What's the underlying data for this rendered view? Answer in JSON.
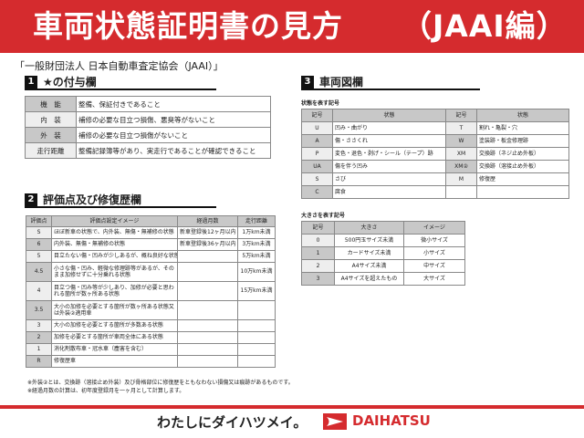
{
  "header": {
    "title": "車両状態証明書の見方",
    "title_suffix": "（JAAI編）"
  },
  "subtitle": "「一般財団法人 日本自動車査定協会（JAAI）」",
  "section1": {
    "num": "1",
    "title": "★の付与欄",
    "rows": [
      {
        "k": "機　能",
        "v": "整備、保証付きであること"
      },
      {
        "k": "内　装",
        "v": "補修の必要な目立つ損傷、悪臭等がないこと"
      },
      {
        "k": "外　装",
        "v": "補修の必要な目立つ損傷がないこと"
      },
      {
        "k": "走行距離",
        "v": "整備記録簿等があり、実走行であることが確認できること"
      }
    ]
  },
  "section2": {
    "num": "2",
    "title": "評価点及び修復歴欄",
    "headers": [
      "評価点",
      "評価点設定イメージ",
      "経過月数",
      "走行距離"
    ],
    "rows": [
      [
        "S",
        "ほぼ新車の状態で、内外装、無傷・無補修の状態",
        "新車登録後12ヶ月以内",
        "1万km未満"
      ],
      [
        "6",
        "内外装、無傷・無補修の状態",
        "新車登録後36ヶ月以内",
        "3万km未満"
      ],
      [
        "5",
        "目立たない傷・凹みが少しあるが、概ね良好な状態",
        "",
        "5万km未満"
      ],
      [
        "4.5",
        "小さな傷・凹み、軽微な修理跡等があるが、そのまま加修せずに十分乗れる状態",
        "",
        "10万km未満"
      ],
      [
        "4",
        "目立つ傷・凹み等が少しあり、加修が必要と思われる箇所が数ヶ所ある状態",
        "",
        "15万km未満"
      ],
      [
        "3.5",
        "大小の加修を必要とする箇所が数ヶ所ある状態又は外装②適用車",
        "",
        ""
      ],
      [
        "3",
        "大小の加修を必要とする箇所が多数ある状態",
        "",
        ""
      ],
      [
        "2",
        "加修を必要とする箇所が車両全体にある状態",
        "",
        ""
      ],
      [
        "1",
        "消化剤散布車・冠水車（塵害を含む）",
        "",
        ""
      ],
      [
        "R",
        "修復歴車",
        "",
        ""
      ]
    ]
  },
  "section3": {
    "num": "3",
    "title": "車両図欄",
    "state_label": "状態を表す記号",
    "state_headers": [
      "記号",
      "状態",
      "記号",
      "状態"
    ],
    "state_rows": [
      [
        "U",
        "凹み・曲がり",
        "T",
        "割れ・亀裂・穴"
      ],
      [
        "A",
        "傷・ささくれ",
        "W",
        "塗装跡・板金修理跡"
      ],
      [
        "P",
        "変色・退色・剥げ・シール（テープ）跡",
        "XM",
        "交換跡（ネジ止め外板）"
      ],
      [
        "UA",
        "傷を伴う凹み",
        "XM②",
        "交換跡（溶接止め外板）"
      ],
      [
        "S",
        "さび",
        "M",
        "修復歴"
      ],
      [
        "C",
        "腐食",
        "",
        ""
      ]
    ],
    "size_label": "大きさを表す記号",
    "size_headers": [
      "記号",
      "大きさ",
      "イメージ"
    ],
    "size_rows": [
      [
        "0",
        "500円玉サイズ未満",
        "微小サイズ"
      ],
      [
        "1",
        "カードサイズ未満",
        "小サイズ"
      ],
      [
        "2",
        "A4サイズ未満",
        "中サイズ"
      ],
      [
        "3",
        "A4サイズを超えたもの",
        "大サイズ"
      ]
    ]
  },
  "notes": [
    "※外装②とは、交換跡（溶接止め外装）及び骨格部位に修復歴をともなわない損傷又は痕跡があるものです。",
    "※経過月数の計算は、初年度登録月を一ヶ月として計算します。"
  ],
  "footer": {
    "slogan": "わたしにダイハツメイ。",
    "brand": "DAIHATSU"
  },
  "colors": {
    "brand_red": "#d52b2e"
  }
}
